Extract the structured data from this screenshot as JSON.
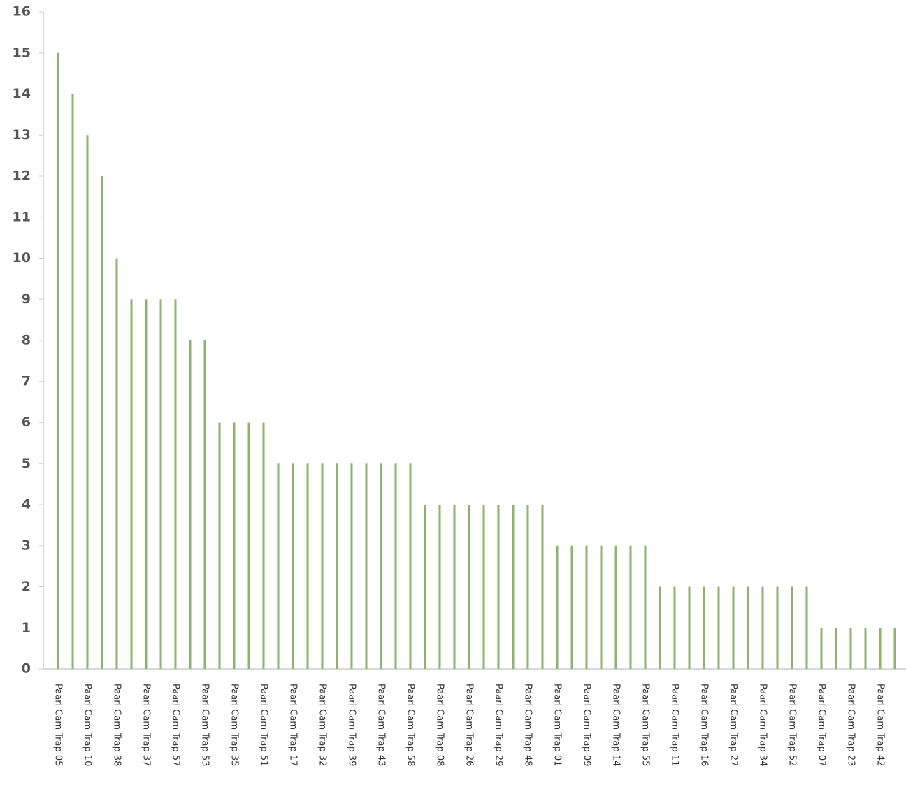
{
  "chart_data": {
    "type": "bar",
    "categories": [
      "Paarl Cam Trap 05",
      null,
      "Paarl Cam Trap 10",
      null,
      "Paarl Cam Trap 38",
      null,
      "Paarl Cam Trap 37",
      null,
      "Paarl Cam Trap 57",
      null,
      "Paarl Cam Trap 53",
      null,
      "Paarl Cam Trap 35",
      null,
      "Paarl Cam Trap 51",
      null,
      "Paarl Cam Trap 17",
      null,
      "Paarl Cam Trap 32",
      null,
      "Paarl Cam Trap 39",
      null,
      "Paarl Cam Trap 43",
      null,
      "Paarl Cam Trap 58",
      null,
      "Paarl Cam Trap 08",
      null,
      "Paarl Cam Trap 26",
      null,
      "Paarl Cam Trap 29",
      null,
      "Paarl Cam Trap 48",
      null,
      "Paarl Cam Trap 01",
      null,
      "Paarl Cam Trap 09",
      null,
      "Paarl Cam Trap 14",
      null,
      "Paarl Cam Trap 55",
      null,
      "Paarl Cam Trap 11",
      null,
      "Paarl Cam Trap 16",
      null,
      "Paarl Cam Trap 27",
      null,
      "Paarl Cam Trap 34",
      null,
      "Paarl Cam Trap 52",
      null,
      "Paarl Cam Trap 07",
      null,
      "Paarl Cam Trap 23",
      null,
      "Paarl Cam Trap 42",
      null
    ],
    "values": [
      15,
      14,
      13,
      12,
      10,
      9,
      9,
      9,
      9,
      8,
      8,
      6,
      6,
      6,
      6,
      5,
      5,
      5,
      5,
      5,
      5,
      5,
      5,
      5,
      5,
      4,
      4,
      4,
      4,
      4,
      4,
      4,
      4,
      4,
      3,
      3,
      3,
      3,
      3,
      3,
      3,
      2,
      2,
      2,
      2,
      2,
      2,
      2,
      2,
      2,
      2,
      2,
      1,
      1,
      1,
      1,
      1,
      1
    ],
    "color": "#8db36d",
    "ylim": [
      0,
      16
    ],
    "yticks": [
      0,
      1,
      2,
      3,
      4,
      5,
      6,
      7,
      8,
      9,
      10,
      11,
      12,
      13,
      14,
      15,
      16
    ],
    "grid": false
  }
}
